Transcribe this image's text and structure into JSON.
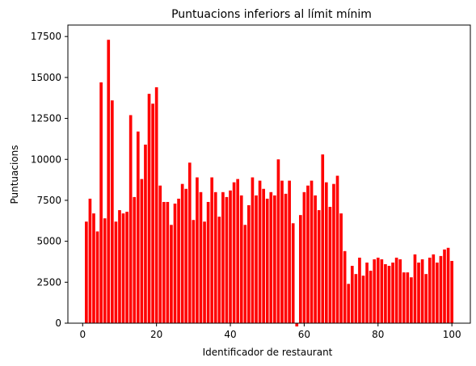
{
  "chart_data": {
    "type": "bar",
    "title": "Puntuacions inferiors al límit mínim",
    "xlabel": "Identificador de restaurant",
    "ylabel": "Puntuacions",
    "xlim": [
      -4,
      105
    ],
    "ylim": [
      0,
      18200
    ],
    "xticks": [
      0,
      20,
      40,
      60,
      80,
      100
    ],
    "yticks": [
      0,
      2500,
      5000,
      7500,
      10000,
      12500,
      15000,
      17500
    ],
    "bar_color": "#ff0000",
    "grid": false,
    "x": [
      1,
      2,
      3,
      4,
      5,
      6,
      7,
      8,
      9,
      10,
      11,
      12,
      13,
      14,
      15,
      16,
      17,
      18,
      19,
      20,
      21,
      22,
      23,
      24,
      25,
      26,
      27,
      28,
      29,
      30,
      31,
      32,
      33,
      34,
      35,
      36,
      37,
      38,
      39,
      40,
      41,
      42,
      43,
      44,
      45,
      46,
      47,
      48,
      49,
      50,
      51,
      52,
      53,
      54,
      55,
      56,
      57,
      58,
      59,
      60,
      61,
      62,
      63,
      64,
      65,
      66,
      67,
      68,
      69,
      70,
      71,
      72,
      73,
      74,
      75,
      76,
      77,
      78,
      79,
      80,
      81,
      82,
      83,
      84,
      85,
      86,
      87,
      88,
      89,
      90,
      91,
      92,
      93,
      94,
      95,
      96,
      97,
      98,
      99,
      100
    ],
    "values": [
      6200,
      7600,
      6700,
      5600,
      14700,
      6400,
      17300,
      13600,
      6200,
      6900,
      6700,
      6800,
      12700,
      7700,
      11700,
      8800,
      10900,
      14000,
      13400,
      14400,
      8400,
      7400,
      7400,
      6000,
      7300,
      7600,
      8500,
      8200,
      9800,
      6300,
      8900,
      8000,
      6200,
      7400,
      8900,
      8000,
      6500,
      8000,
      7700,
      8100,
      8600,
      8800,
      7800,
      6000,
      7200,
      8900,
      7800,
      8700,
      8200,
      7600,
      8000,
      7800,
      10000,
      8700,
      7900,
      8700,
      6100,
      -200,
      6600,
      8000,
      8400,
      8700,
      7800,
      6900,
      10300,
      8600,
      7100,
      8500,
      9000,
      6700,
      4400,
      2400,
      3500,
      3000,
      4000,
      2900,
      3700,
      3200,
      3900,
      4000,
      3900,
      3600,
      3500,
      3700,
      4000,
      3900,
      3100,
      3100,
      2800,
      4200,
      3700,
      3900,
      3000,
      4000,
      4200,
      3700,
      4100,
      4500,
      4600,
      3800
    ]
  }
}
